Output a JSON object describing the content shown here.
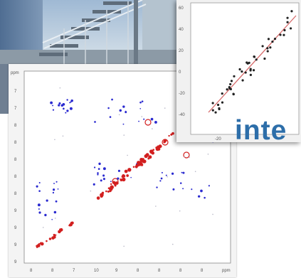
{
  "overlay_text": "inte",
  "nmr": {
    "unit_left": "ppm",
    "unit_bottom": "ppm",
    "y_ticks": [
      "7",
      "7",
      "8",
      "8",
      "8",
      "8",
      "8",
      "9",
      "9",
      "9",
      "9"
    ],
    "x_ticks": [
      "8",
      "8",
      "7",
      "10",
      "9",
      "8",
      "8",
      "8",
      "8",
      "ppm"
    ]
  },
  "scatter": {
    "y_ticks": [
      "60",
      "40",
      "20",
      "0",
      "-20",
      "-40"
    ],
    "x_ticks": [
      "-20"
    ]
  },
  "colors": {
    "accent": "#2d6ea9",
    "diagonal": "#d21f1f",
    "crosspeak": "#2a2ad0",
    "fit_line": "#d66a6a"
  }
}
